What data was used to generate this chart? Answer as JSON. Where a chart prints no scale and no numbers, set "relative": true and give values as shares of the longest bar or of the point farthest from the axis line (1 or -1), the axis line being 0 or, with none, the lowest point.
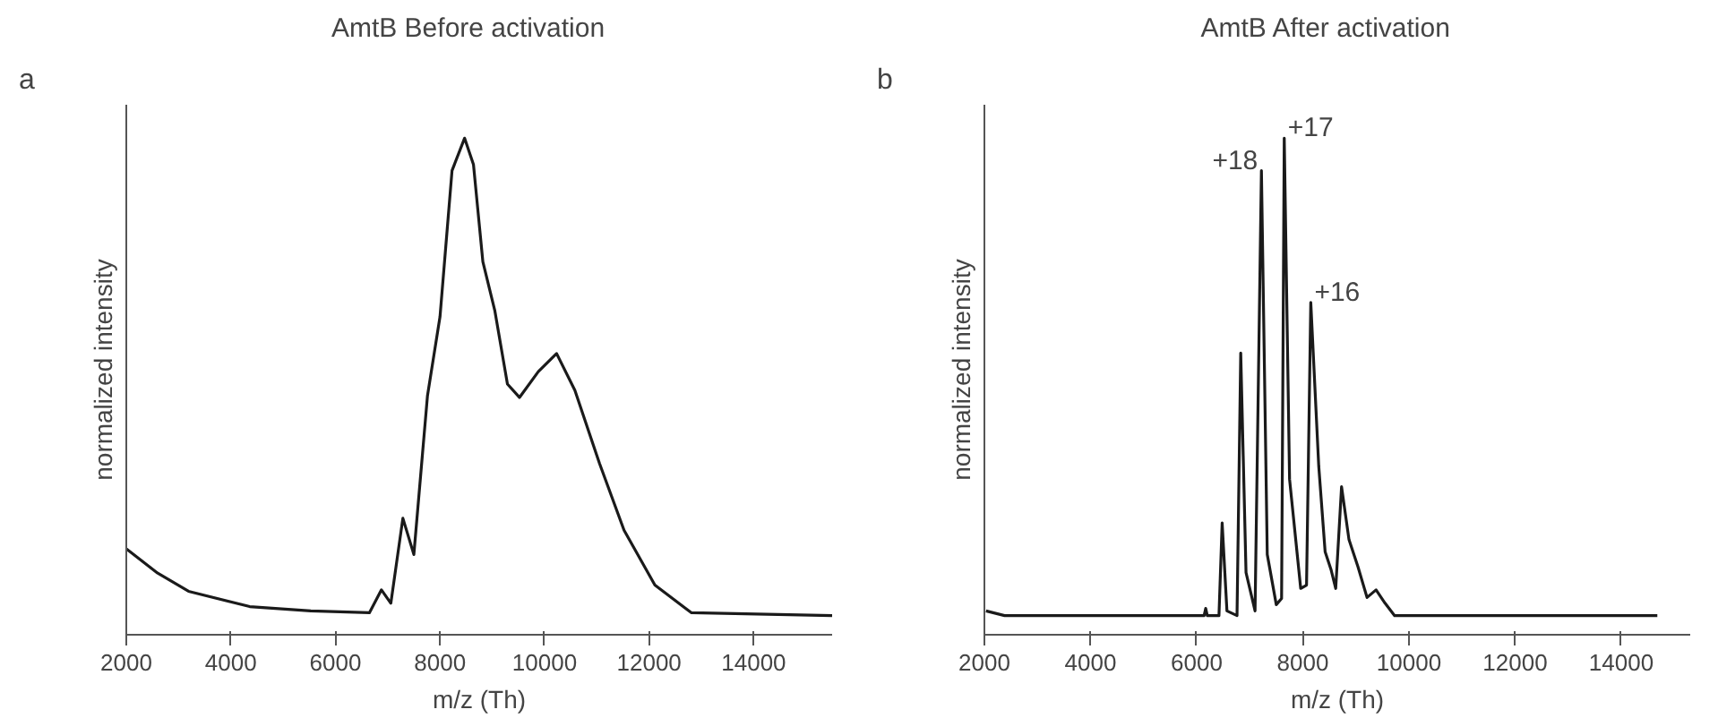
{
  "chart_data": [
    {
      "type": "line",
      "title": "AmtB    Before activation",
      "xlabel": "m/z (Th)",
      "ylabel": "normalized intensity",
      "relative": true,
      "tick_labels": "x",
      "grid": false,
      "marker": "none",
      "line_style": "solid",
      "xlim": [
        2000,
        15500
      ],
      "xticks": [
        2000,
        4000,
        6000,
        8000,
        10000,
        12000,
        14000
      ],
      "annotations": [
        "a"
      ],
      "series": [
        {
          "color": "#1a1a1a",
          "x": [
            2000,
            2600,
            3190,
            4360,
            5530,
            6650,
            6880,
            7060,
            7290,
            7500,
            7760,
            8000,
            8230,
            8470,
            8640,
            8820,
            9050,
            9290,
            9520,
            9880,
            10230,
            10580,
            11050,
            11520,
            12110,
            12810,
            15500
          ],
          "values": [
            0.14,
            0.089,
            0.051,
            0.019,
            0.01,
            0.006,
            0.054,
            0.026,
            0.204,
            0.128,
            0.46,
            0.626,
            0.932,
            1.0,
            0.945,
            0.741,
            0.638,
            0.485,
            0.457,
            0.511,
            0.549,
            0.472,
            0.319,
            0.179,
            0.064,
            0.006,
            0
          ]
        }
      ]
    },
    {
      "type": "line",
      "title": "AmtB    After activation",
      "xlabel": "m/z (Th)",
      "ylabel": "normalized intensity",
      "relative": true,
      "tick_labels": "x",
      "grid": false,
      "marker": "none",
      "line_style": "solid",
      "xlim": [
        2000,
        15300
      ],
      "xticks": [
        2000,
        4000,
        6000,
        8000,
        10000,
        12000,
        14000
      ],
      "annotations": [
        "b",
        {
          "text": "+18",
          "x": 7220,
          "y": 0.932
        },
        {
          "text": "+17",
          "x": 7650,
          "y": 1.0
        },
        {
          "text": "+16",
          "x": 8150,
          "y": 0.656
        }
      ],
      "series": [
        {
          "color": "#1a1a1a",
          "x": [
            2030,
            2380,
            6140,
            6170,
            6200,
            6420,
            6480,
            6570,
            6760,
            6830,
            6930,
            7100,
            7220,
            7330,
            7500,
            7600,
            7650,
            7750,
            7960,
            8070,
            8150,
            8300,
            8420,
            8530,
            8620,
            8730,
            8870,
            9040,
            9210,
            9380,
            9550,
            9730,
            14680
          ],
          "values": [
            0.01,
            0,
            0,
            0.015,
            0,
            0,
            0.194,
            0.01,
            0,
            0.55,
            0.09,
            0.01,
            0.932,
            0.128,
            0.023,
            0.036,
            1.0,
            0.286,
            0.057,
            0.064,
            0.656,
            0.313,
            0.134,
            0.097,
            0.057,
            0.27,
            0.159,
            0.102,
            0.038,
            0.054,
            0.026,
            0,
            0
          ]
        }
      ]
    }
  ]
}
